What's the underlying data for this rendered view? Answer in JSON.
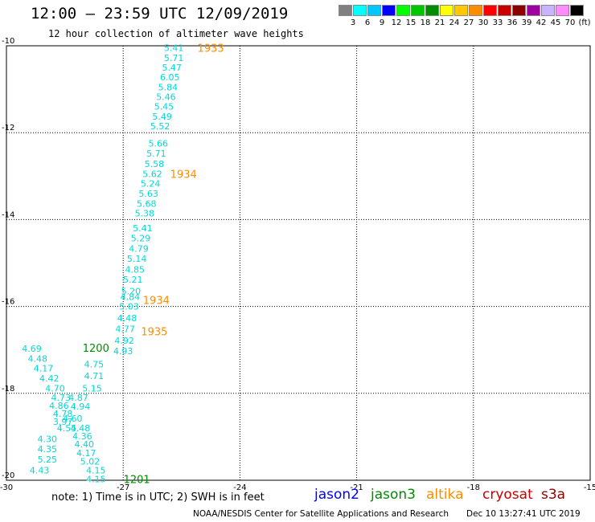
{
  "header": {
    "title": "12:00 — 23:59 UTC 12/09/2019",
    "subtitle": "12 hour collection of altimeter wave heights"
  },
  "colorbar": {
    "colors": [
      "#808080",
      "#00ffff",
      "#00c8ff",
      "#0000ff",
      "#00ff00",
      "#00c800",
      "#008c00",
      "#ffff00",
      "#ffc800",
      "#ff8c00",
      "#ff0000",
      "#c80000",
      "#8c0000",
      "#a000a0",
      "#c8b4ff",
      "#ff8cff",
      "#000000"
    ],
    "labels": [
      "3",
      "6",
      "9",
      "12",
      "15",
      "18",
      "21",
      "24",
      "27",
      "30",
      "33",
      "36",
      "39",
      "42",
      "45",
      "70",
      "(ft)"
    ]
  },
  "axes": {
    "lon_ticks": [
      "-30",
      "-27",
      "-24",
      "-21",
      "-18",
      "-15"
    ],
    "lat_ticks": [
      "-10",
      "-12",
      "-14",
      "-16",
      "-18",
      "-20"
    ]
  },
  "chart_data": {
    "type": "scatter",
    "xlim": [
      -30,
      -15
    ],
    "ylim": [
      -20,
      -10
    ],
    "grid": true,
    "points": [
      {
        "lon": -25.7,
        "lat": -10.05,
        "v": "5.41"
      },
      {
        "lon": -25.7,
        "lat": -10.28,
        "v": "5.71"
      },
      {
        "lon": -25.75,
        "lat": -10.5,
        "v": "5.47"
      },
      {
        "lon": -25.8,
        "lat": -10.72,
        "v": "6.05"
      },
      {
        "lon": -25.85,
        "lat": -10.95,
        "v": "5.84"
      },
      {
        "lon": -25.9,
        "lat": -11.17,
        "v": "5.46"
      },
      {
        "lon": -25.95,
        "lat": -11.4,
        "v": "5.45"
      },
      {
        "lon": -26.0,
        "lat": -11.63,
        "v": "5.49"
      },
      {
        "lon": -26.05,
        "lat": -11.85,
        "v": "5.52"
      },
      {
        "lon": -26.1,
        "lat": -12.25,
        "v": "5.66"
      },
      {
        "lon": -26.15,
        "lat": -12.48,
        "v": "5.71"
      },
      {
        "lon": -26.2,
        "lat": -12.72,
        "v": "5.58"
      },
      {
        "lon": -26.25,
        "lat": -12.95,
        "v": "5.62"
      },
      {
        "lon": -26.3,
        "lat": -13.17,
        "v": "5.24"
      },
      {
        "lon": -26.35,
        "lat": -13.4,
        "v": "5.63"
      },
      {
        "lon": -26.4,
        "lat": -13.63,
        "v": "5.68"
      },
      {
        "lon": -26.45,
        "lat": -13.85,
        "v": "5.38"
      },
      {
        "lon": -26.5,
        "lat": -14.2,
        "v": "5.41"
      },
      {
        "lon": -26.55,
        "lat": -14.43,
        "v": "5.29"
      },
      {
        "lon": -26.6,
        "lat": -14.67,
        "v": "4.79"
      },
      {
        "lon": -26.65,
        "lat": -14.9,
        "v": "5.14"
      },
      {
        "lon": -26.7,
        "lat": -15.15,
        "v": "4.85"
      },
      {
        "lon": -26.75,
        "lat": -15.38,
        "v": "5.21"
      },
      {
        "lon": -26.8,
        "lat": -15.65,
        "v": "5.20"
      },
      {
        "lon": -26.82,
        "lat": -15.78,
        "v": "4.84"
      },
      {
        "lon": -26.85,
        "lat": -16.0,
        "v": "5.03"
      },
      {
        "lon": -26.9,
        "lat": -16.27,
        "v": "4.48"
      },
      {
        "lon": -26.95,
        "lat": -16.52,
        "v": "4.77"
      },
      {
        "lon": -26.97,
        "lat": -16.78,
        "v": "4.92"
      },
      {
        "lon": -27.0,
        "lat": -17.02,
        "v": "4.93"
      },
      {
        "lon": -29.35,
        "lat": -16.97,
        "v": "4.69"
      },
      {
        "lon": -29.2,
        "lat": -17.2,
        "v": "4.48"
      },
      {
        "lon": -29.05,
        "lat": -17.42,
        "v": "4.17"
      },
      {
        "lon": -28.9,
        "lat": -17.65,
        "v": "4.42"
      },
      {
        "lon": -28.75,
        "lat": -17.88,
        "v": "4.70"
      },
      {
        "lon": -27.75,
        "lat": -17.33,
        "v": "4.75"
      },
      {
        "lon": -27.75,
        "lat": -17.6,
        "v": "4.71"
      },
      {
        "lon": -27.8,
        "lat": -17.88,
        "v": "5.15"
      },
      {
        "lon": -28.6,
        "lat": -18.1,
        "v": "4.73"
      },
      {
        "lon": -28.15,
        "lat": -18.1,
        "v": "4.87"
      },
      {
        "lon": -28.65,
        "lat": -18.28,
        "v": "4.86"
      },
      {
        "lon": -28.1,
        "lat": -18.3,
        "v": "4.94"
      },
      {
        "lon": -28.55,
        "lat": -18.47,
        "v": "4.78"
      },
      {
        "lon": -28.3,
        "lat": -18.58,
        "v": "4.60"
      },
      {
        "lon": -28.55,
        "lat": -18.65,
        "v": "3.97"
      },
      {
        "lon": -28.45,
        "lat": -18.8,
        "v": "4.55"
      },
      {
        "lon": -28.1,
        "lat": -18.8,
        "v": "4.48"
      },
      {
        "lon": -28.95,
        "lat": -19.05,
        "v": "4.30"
      },
      {
        "lon": -28.05,
        "lat": -18.98,
        "v": "4.36"
      },
      {
        "lon": -28.0,
        "lat": -19.17,
        "v": "4.40"
      },
      {
        "lon": -28.95,
        "lat": -19.28,
        "v": "4.35"
      },
      {
        "lon": -27.95,
        "lat": -19.37,
        "v": "4.17"
      },
      {
        "lon": -28.95,
        "lat": -19.52,
        "v": "5.25"
      },
      {
        "lon": -27.85,
        "lat": -19.57,
        "v": "5.02"
      },
      {
        "lon": -29.15,
        "lat": -19.77,
        "v": "4.43"
      },
      {
        "lon": -27.7,
        "lat": -19.77,
        "v": "4.15"
      },
      {
        "lon": -27.7,
        "lat": -19.97,
        "v": "4.15"
      }
    ],
    "pass_times": [
      {
        "lon": -24.75,
        "lat": -10.05,
        "label": "1933",
        "sat": "altika"
      },
      {
        "lon": -25.45,
        "lat": -12.95,
        "label": "1934",
        "sat": "altika"
      },
      {
        "lon": -26.15,
        "lat": -15.85,
        "label": "1934",
        "sat": "altika"
      },
      {
        "lon": -26.2,
        "lat": -16.57,
        "label": "1935",
        "sat": "altika"
      },
      {
        "lon": -27.7,
        "lat": -16.95,
        "label": "1200",
        "sat": "jason3"
      },
      {
        "lon": -26.65,
        "lat": -19.97,
        "label": "1201",
        "sat": "jason3"
      }
    ]
  },
  "footer": {
    "note": "note: 1) Time is in UTC; 2) SWH is in feet",
    "satellites": [
      {
        "name": "jason2",
        "color": "#0000ff"
      },
      {
        "name": "jason3",
        "color": "#008c00"
      },
      {
        "name": "altika",
        "color": "#ff8c00"
      },
      {
        "name": "cryosat",
        "color": "#c80000"
      },
      {
        "name": "s3a",
        "color": "#8c0000"
      }
    ],
    "credit": "NOAA/NESDIS Center for Satellite Applications and Research",
    "timestamp": "Dec 10 13:27:41 UTC 2019"
  },
  "colors": {
    "wave_value": "#00d8d8",
    "altika": "#ff8c00",
    "jason3": "#008c00",
    "grid": "#000000"
  }
}
